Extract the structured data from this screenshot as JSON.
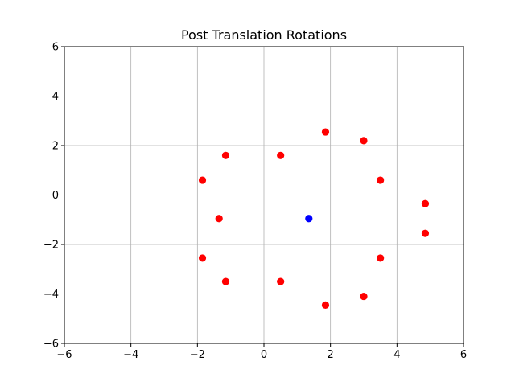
{
  "chart_data": {
    "type": "scatter",
    "title": "Post Translation Rotations",
    "xlabel": "",
    "ylabel": "",
    "xlim": [
      -6,
      6
    ],
    "ylim": [
      -6,
      6
    ],
    "xticks": [
      -6,
      -4,
      -2,
      0,
      2,
      4,
      6
    ],
    "yticks": [
      -6,
      -4,
      -2,
      0,
      2,
      4,
      6
    ],
    "grid": true,
    "series": [
      {
        "color": "#ff0000",
        "points": [
          [
            1.85,
            2.55
          ],
          [
            3.0,
            2.2
          ],
          [
            3.5,
            0.6
          ],
          [
            4.85,
            -0.35
          ],
          [
            4.85,
            -1.55
          ],
          [
            3.5,
            -2.55
          ],
          [
            3.0,
            -4.1
          ],
          [
            1.85,
            -4.45
          ],
          [
            0.5,
            -3.5
          ],
          [
            -1.15,
            -3.5
          ],
          [
            -1.85,
            -2.55
          ],
          [
            -1.35,
            -0.95
          ],
          [
            -1.85,
            0.6
          ],
          [
            -1.15,
            1.6
          ],
          [
            0.5,
            1.6
          ]
        ]
      },
      {
        "color": "#0000ff",
        "points": [
          [
            1.35,
            -0.95
          ]
        ]
      }
    ]
  }
}
